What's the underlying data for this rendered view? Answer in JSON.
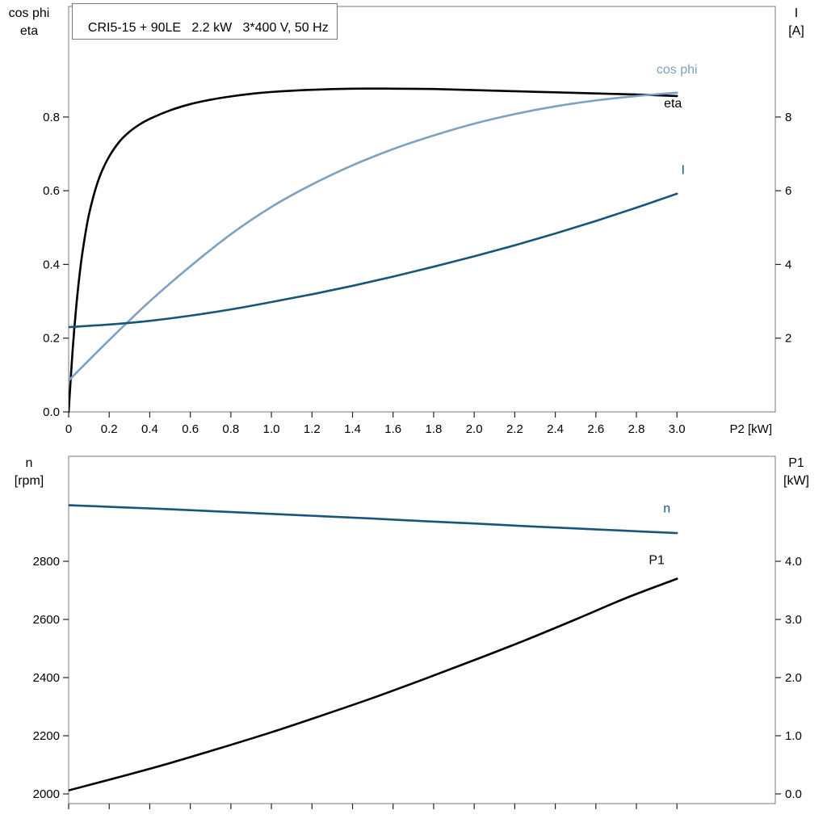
{
  "style": {
    "background": "#ffffff",
    "frame_color": "#7a7a7a",
    "tick_color": "#222222",
    "text_color": "#000000",
    "curve_black": "#000000",
    "curve_dark_blue": "#15567a",
    "curve_light_blue": "#7fa0bf"
  },
  "chart_data": [
    {
      "type": "line",
      "title": "CRI5-15 + 90LE   2.2 kW   3*400 V, 50 Hz",
      "grid": false,
      "legend": "inline-labels",
      "x_axis": {
        "label": "P2 [kW]",
        "range": [
          0,
          3.485
        ],
        "ticks": [
          {
            "v": 0,
            "t": "0"
          },
          {
            "v": 0.2,
            "t": "0.2"
          },
          {
            "v": 0.4,
            "t": "0.4"
          },
          {
            "v": 0.6,
            "t": "0.6"
          },
          {
            "v": 0.8,
            "t": "0.8"
          },
          {
            "v": 1.0,
            "t": "1.0"
          },
          {
            "v": 1.2,
            "t": "1.2"
          },
          {
            "v": 1.4,
            "t": "1.4"
          },
          {
            "v": 1.6,
            "t": "1.6"
          },
          {
            "v": 1.8,
            "t": "1.8"
          },
          {
            "v": 2.0,
            "t": "2.0"
          },
          {
            "v": 2.2,
            "t": "2.2"
          },
          {
            "v": 2.4,
            "t": "2.4"
          },
          {
            "v": 2.6,
            "t": "2.6"
          },
          {
            "v": 2.8,
            "t": "2.8"
          },
          {
            "v": 3.0,
            "t": "3.0"
          }
        ]
      },
      "y_left": {
        "title_lines": [
          "cos phi",
          "eta"
        ],
        "range": [
          0,
          1.1
        ],
        "ticks": [
          {
            "v": 0.0,
            "t": "0.0"
          },
          {
            "v": 0.2,
            "t": "0.2"
          },
          {
            "v": 0.4,
            "t": "0.4"
          },
          {
            "v": 0.6,
            "t": "0.6"
          },
          {
            "v": 0.8,
            "t": "0.8"
          }
        ]
      },
      "y_right": {
        "title_lines": [
          "I",
          "[A]"
        ],
        "range": [
          0,
          11
        ],
        "ticks": [
          {
            "v": 2,
            "t": "2"
          },
          {
            "v": 4,
            "t": "4"
          },
          {
            "v": 6,
            "t": "6"
          },
          {
            "v": 8,
            "t": "8"
          }
        ]
      },
      "series": [
        {
          "id": "eta",
          "name": "eta",
          "axis": "left",
          "color": "#000000",
          "label_at": [
            2.98,
            0.826
          ],
          "points": [
            [
              0,
              0
            ],
            [
              0.02,
              0.17
            ],
            [
              0.04,
              0.3
            ],
            [
              0.06,
              0.4
            ],
            [
              0.08,
              0.475
            ],
            [
              0.1,
              0.535
            ],
            [
              0.13,
              0.6
            ],
            [
              0.16,
              0.648
            ],
            [
              0.2,
              0.693
            ],
            [
              0.25,
              0.733
            ],
            [
              0.3,
              0.76
            ],
            [
              0.35,
              0.78
            ],
            [
              0.4,
              0.795
            ],
            [
              0.5,
              0.818
            ],
            [
              0.6,
              0.835
            ],
            [
              0.7,
              0.847
            ],
            [
              0.8,
              0.856
            ],
            [
              0.9,
              0.863
            ],
            [
              1.0,
              0.868
            ],
            [
              1.2,
              0.874
            ],
            [
              1.4,
              0.877
            ],
            [
              1.6,
              0.877
            ],
            [
              1.8,
              0.876
            ],
            [
              2.0,
              0.873
            ],
            [
              2.2,
              0.87
            ],
            [
              2.4,
              0.867
            ],
            [
              2.6,
              0.864
            ],
            [
              2.8,
              0.861
            ],
            [
              3.0,
              0.857
            ]
          ]
        },
        {
          "id": "cos-phi",
          "name": "cos phi",
          "axis": "left",
          "color": "#7fa0bf",
          "label_at": [
            3.0,
            0.918
          ],
          "points": [
            [
              0,
              0.085
            ],
            [
              0.2,
              0.195
            ],
            [
              0.4,
              0.3
            ],
            [
              0.6,
              0.395
            ],
            [
              0.8,
              0.482
            ],
            [
              1.0,
              0.556
            ],
            [
              1.2,
              0.617
            ],
            [
              1.4,
              0.669
            ],
            [
              1.6,
              0.713
            ],
            [
              1.8,
              0.75
            ],
            [
              2.0,
              0.782
            ],
            [
              2.2,
              0.808
            ],
            [
              2.4,
              0.829
            ],
            [
              2.6,
              0.845
            ],
            [
              2.8,
              0.857
            ],
            [
              3.0,
              0.866
            ]
          ]
        },
        {
          "id": "current",
          "name": "I",
          "axis": "right",
          "color": "#15567a",
          "label_at": [
            3.03,
            6.45
          ],
          "points": [
            [
              0,
              2.3
            ],
            [
              0.2,
              2.37
            ],
            [
              0.4,
              2.47
            ],
            [
              0.6,
              2.61
            ],
            [
              0.8,
              2.78
            ],
            [
              1.0,
              2.98
            ],
            [
              1.2,
              3.19
            ],
            [
              1.4,
              3.42
            ],
            [
              1.6,
              3.67
            ],
            [
              1.8,
              3.94
            ],
            [
              2.0,
              4.22
            ],
            [
              2.2,
              4.52
            ],
            [
              2.4,
              4.84
            ],
            [
              2.6,
              5.18
            ],
            [
              2.8,
              5.54
            ],
            [
              3.0,
              5.92
            ]
          ]
        }
      ]
    },
    {
      "type": "line",
      "title": "",
      "grid": false,
      "legend": "inline-labels",
      "x_axis": {
        "range": [
          0,
          3.485
        ],
        "ticks": [
          {
            "v": 0
          },
          {
            "v": 0.2
          },
          {
            "v": 0.4
          },
          {
            "v": 0.6
          },
          {
            "v": 0.8
          },
          {
            "v": 1.0
          },
          {
            "v": 1.2
          },
          {
            "v": 1.4
          },
          {
            "v": 1.6
          },
          {
            "v": 1.8
          },
          {
            "v": 2.0
          },
          {
            "v": 2.2
          },
          {
            "v": 2.4
          },
          {
            "v": 2.6
          },
          {
            "v": 2.8
          },
          {
            "v": 3.0
          }
        ]
      },
      "y_left": {
        "title_lines": [
          "n",
          "[rpm]"
        ],
        "range": [
          1966.7,
          3161.1
        ],
        "ticks": [
          {
            "v": 2000,
            "t": "2000"
          },
          {
            "v": 2200,
            "t": "2200"
          },
          {
            "v": 2400,
            "t": "2400"
          },
          {
            "v": 2600,
            "t": "2600"
          },
          {
            "v": 2800,
            "t": "2800"
          }
        ]
      },
      "y_right": {
        "title_lines": [
          "P1",
          "[kW]"
        ],
        "range": [
          -0.1667,
          5.8056
        ],
        "ticks": [
          {
            "v": 0.0,
            "t": "0.0"
          },
          {
            "v": 1.0,
            "t": "1.0"
          },
          {
            "v": 2.0,
            "t": "2.0"
          },
          {
            "v": 3.0,
            "t": "3.0"
          },
          {
            "v": 4.0,
            "t": "4.0"
          }
        ]
      },
      "series": [
        {
          "id": "speed",
          "name": "n",
          "axis": "left",
          "color": "#15567a",
          "label_at": [
            2.95,
            2968
          ],
          "points": [
            [
              0,
              2993
            ],
            [
              0.25,
              2986
            ],
            [
              0.5,
              2979
            ],
            [
              0.75,
              2971
            ],
            [
              1.0,
              2963
            ],
            [
              1.25,
              2955
            ],
            [
              1.5,
              2947
            ],
            [
              1.75,
              2938
            ],
            [
              2.0,
              2930
            ],
            [
              2.25,
              2921
            ],
            [
              2.5,
              2913
            ],
            [
              2.75,
              2905
            ],
            [
              3.0,
              2897
            ]
          ]
        },
        {
          "id": "input-power",
          "name": "P1",
          "axis": "right",
          "color": "#000000",
          "label_at": [
            2.9,
            3.95
          ],
          "points": [
            [
              0,
              0.06
            ],
            [
              0.25,
              0.29
            ],
            [
              0.5,
              0.53
            ],
            [
              0.75,
              0.79
            ],
            [
              1.0,
              1.06
            ],
            [
              1.25,
              1.35
            ],
            [
              1.5,
              1.65
            ],
            [
              1.75,
              1.97
            ],
            [
              2.0,
              2.3
            ],
            [
              2.25,
              2.64
            ],
            [
              2.5,
              3.0
            ],
            [
              2.75,
              3.37
            ],
            [
              3.0,
              3.7
            ]
          ]
        }
      ]
    }
  ]
}
